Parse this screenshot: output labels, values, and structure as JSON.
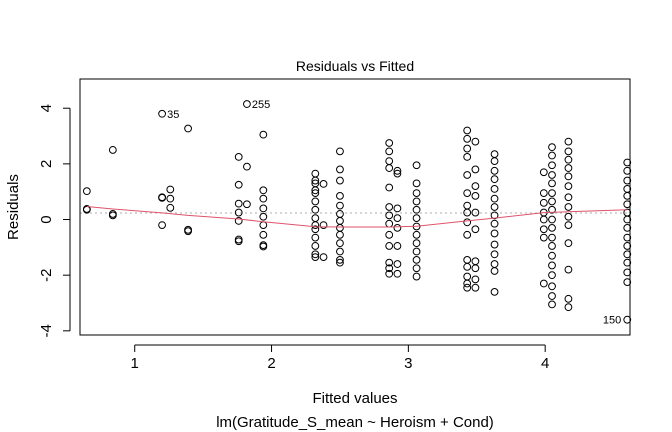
{
  "chart_data": {
    "type": "scatter",
    "title": "Residuals vs Fitted",
    "xlabel": "Fitted values",
    "ylabel": "Residuals",
    "subtitle": "lm(Gratitude_S_mean ~ Heroism + Cond)",
    "xlim": [
      0.6,
      4.62
    ],
    "ylim": [
      -4.15,
      5.05
    ],
    "xticks": [
      1,
      2,
      3,
      4
    ],
    "yticks": [
      -4,
      -2,
      0,
      2,
      4
    ],
    "reference_line": 0,
    "colors": {
      "points": "#000000",
      "smoother": "#DF536B",
      "reference": "#BEBEBE"
    },
    "columns": [
      {
        "x": 0.65,
        "y": [
          1.02,
          0.38,
          0.35
        ]
      },
      {
        "x": 0.84,
        "y": [
          2.5,
          0.2,
          0.15
        ]
      },
      {
        "x": 1.2,
        "y": [
          3.8,
          0.8,
          0.78,
          -0.2
        ]
      },
      {
        "x": 1.26,
        "y": [
          1.08,
          0.75,
          0.42
        ]
      },
      {
        "x": 1.39,
        "y": [
          3.27,
          -0.37,
          -0.42
        ]
      },
      {
        "x": 1.76,
        "y": [
          2.25,
          1.25,
          0.57,
          0.25,
          -0.05,
          -0.72,
          -0.78
        ]
      },
      {
        "x": 1.82,
        "y": [
          4.15,
          1.9,
          0.55
        ]
      },
      {
        "x": 1.94,
        "y": [
          3.05,
          1.05,
          0.75,
          0.4,
          0.1,
          -0.2,
          -0.55,
          -0.92,
          -0.97
        ]
      },
      {
        "x": 2.32,
        "y": [
          1.65,
          1.4,
          1.3,
          1.05,
          0.95,
          0.65,
          0.35,
          0.05,
          -0.2,
          -0.35,
          -0.65,
          -0.95,
          -1.25,
          -1.35
        ]
      },
      {
        "x": 2.38,
        "y": [
          1.28,
          -0.2,
          -1.35
        ]
      },
      {
        "x": 2.5,
        "y": [
          2.45,
          1.8,
          1.4,
          0.85,
          0.5,
          0.2,
          -0.05,
          -0.3,
          -0.55,
          -0.85,
          -1.15,
          -1.45,
          -1.55
        ]
      },
      {
        "x": 2.86,
        "y": [
          2.75,
          2.45,
          2.1,
          1.85,
          1.15,
          0.45,
          0.15,
          -0.15,
          -0.55,
          -0.95,
          -1.55,
          -1.75,
          -1.95
        ]
      },
      {
        "x": 2.92,
        "y": [
          1.75,
          1.65,
          0.4,
          0.05,
          -0.3,
          -0.95,
          -1.6,
          -1.95
        ]
      },
      {
        "x": 3.06,
        "y": [
          1.95,
          1.3,
          0.95,
          0.65,
          0.35,
          0.05,
          -0.25,
          -0.55,
          -0.85,
          -1.15,
          -1.45,
          -1.75,
          -2.05
        ]
      },
      {
        "x": 3.43,
        "y": [
          3.2,
          2.9,
          2.55,
          2.25,
          1.6,
          0.95,
          0.5,
          0.25,
          -0.1,
          -0.55,
          -1.45,
          -1.7,
          -2.05,
          -2.3,
          -2.45
        ]
      },
      {
        "x": 3.49,
        "y": [
          2.8,
          1.8,
          1.2,
          0.85,
          0.25,
          -0.35,
          -1.5,
          -1.75,
          -2.15,
          -2.45
        ]
      },
      {
        "x": 3.63,
        "y": [
          2.35,
          2.1,
          1.75,
          1.45,
          1.1,
          0.75,
          0.45,
          0.15,
          -0.15,
          -0.5,
          -0.9,
          -1.25,
          -1.6,
          -1.85,
          -2.6
        ]
      },
      {
        "x": 3.99,
        "y": [
          1.7,
          0.95,
          0.6,
          0.25,
          0.0,
          -0.35,
          -0.65,
          -2.3
        ]
      },
      {
        "x": 4.05,
        "y": [
          2.6,
          2.3,
          1.95,
          1.6,
          1.3,
          0.95,
          0.65,
          0.35,
          0.0,
          -0.3,
          -0.65,
          -0.95,
          -1.3,
          -1.65,
          -2.0,
          -2.4,
          -2.75,
          -3.05
        ]
      },
      {
        "x": 4.17,
        "y": [
          2.8,
          2.45,
          2.15,
          1.85,
          1.55,
          1.2,
          0.8,
          0.45,
          0.1,
          -0.2,
          -0.85,
          -1.8,
          -2.85,
          -3.15
        ]
      },
      {
        "x": 4.6,
        "y": [
          2.05,
          1.75,
          1.4,
          1.1,
          0.85,
          0.55,
          0.25,
          0.0,
          -0.3,
          -0.65,
          -0.95,
          -1.25,
          -1.55,
          -1.9,
          -2.25,
          -3.6
        ]
      }
    ],
    "smoother": {
      "x": [
        0.65,
        0.84,
        1.2,
        1.39,
        1.76,
        1.94,
        2.32,
        2.5,
        2.86,
        3.06,
        3.43,
        3.63,
        3.99,
        4.17,
        4.6
      ],
      "y": [
        0.47,
        0.38,
        0.24,
        0.15,
        0.02,
        -0.08,
        -0.26,
        -0.27,
        -0.27,
        -0.24,
        -0.05,
        0.05,
        0.25,
        0.28,
        0.35
      ]
    },
    "point_labels": [
      {
        "text": "35",
        "x": 1.2,
        "y": 3.8,
        "side": "right"
      },
      {
        "text": "255",
        "x": 1.82,
        "y": 4.15,
        "side": "right"
      },
      {
        "text": "150",
        "x": 4.6,
        "y": -3.6,
        "side": "left"
      }
    ]
  }
}
